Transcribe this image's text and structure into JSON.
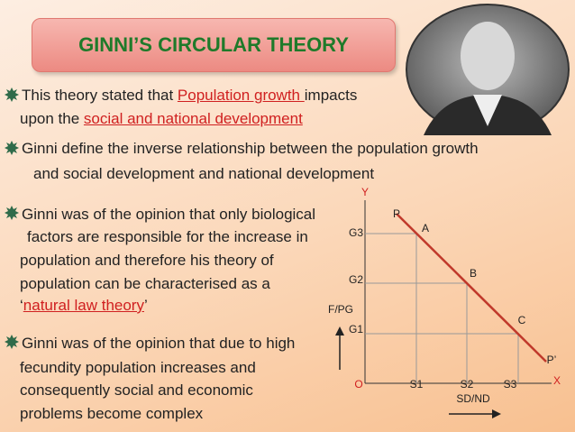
{
  "title": "GINNI’S CIRCULAR THEORY",
  "bullets": [
    {
      "lines": [
        [
          "This theory stated that ",
          "Population growth ",
          "impacts"
        ],
        [
          "upon the ",
          "social and national development"
        ]
      ]
    },
    {
      "lines": [
        [
          "Ginni define the inverse relationship between the population growth"
        ],
        [
          "and social development and national development"
        ]
      ]
    },
    {
      "lines": [
        [
          "Ginni was of the opinion that only biological"
        ],
        [
          "factors are responsible for the increase in"
        ],
        [
          "population and therefore his theory of"
        ],
        [
          "population can be characterised as a"
        ],
        [
          "‘",
          "natural law theory",
          "’"
        ]
      ]
    },
    {
      "lines": [
        [
          "Ginni was of the opinion that due to high"
        ],
        [
          "fecundity population increases and"
        ],
        [
          "consequently social and economic"
        ],
        [
          "problems become complex"
        ]
      ]
    }
  ],
  "diagram": {
    "y_axis": "Y",
    "x_axis": "X",
    "origin": "O",
    "line_start": "P",
    "line_end": "P’",
    "points": [
      "A",
      "B",
      "C"
    ],
    "y_levels": [
      "G3",
      "G2",
      "G1"
    ],
    "x_levels": [
      "S1",
      "S2",
      "S3"
    ],
    "y_title": "F/PG",
    "x_title": "SD/ND"
  }
}
